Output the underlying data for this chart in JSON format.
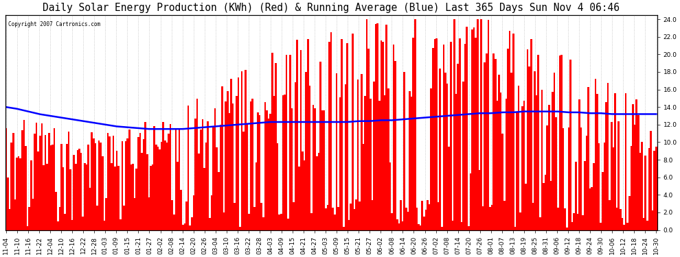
{
  "title": "Daily Solar Energy Production (KWh) (Red) & Running Average (Blue) Last 365 Days Sun Nov 4 06:46",
  "copyright_text": "Copyright 2007 Cartronics.com",
  "yticks": [
    0.0,
    2.0,
    4.0,
    6.0,
    8.0,
    10.0,
    12.0,
    14.0,
    16.0,
    18.0,
    20.0,
    22.0,
    24.0
  ],
  "ylim": [
    0,
    24.5
  ],
  "bar_color": "#FF0000",
  "line_color": "#0000FF",
  "background_color": "#FFFFFF",
  "grid_color": "#BBBBBB",
  "title_fontsize": 10.5,
  "tick_fontsize": 6.5,
  "x_labels": [
    "11-04",
    "11-10",
    "11-16",
    "11-22",
    "12-04",
    "12-10",
    "12-16",
    "12-22",
    "12-28",
    "01-03",
    "01-09",
    "01-15",
    "01-21",
    "01-27",
    "02-02",
    "02-08",
    "02-14",
    "02-20",
    "02-26",
    "03-04",
    "03-10",
    "03-16",
    "03-22",
    "03-28",
    "04-03",
    "04-09",
    "04-15",
    "04-21",
    "04-27",
    "05-03",
    "05-09",
    "05-15",
    "05-21",
    "05-27",
    "06-02",
    "06-08",
    "06-14",
    "06-20",
    "06-26",
    "07-02",
    "07-08",
    "07-14",
    "07-20",
    "07-26",
    "08-01",
    "08-07",
    "08-13",
    "08-19",
    "08-25",
    "08-31",
    "09-06",
    "09-12",
    "09-18",
    "09-24",
    "09-30",
    "10-06",
    "10-12",
    "10-18",
    "10-24",
    "10-30"
  ],
  "avg_line": [
    14.0,
    13.8,
    13.5,
    13.2,
    13.0,
    12.8,
    12.6,
    12.4,
    12.2,
    12.0,
    11.8,
    11.7,
    11.6,
    11.5,
    11.5,
    11.5,
    11.5,
    11.6,
    11.7,
    11.8,
    11.9,
    12.0,
    12.1,
    12.2,
    12.3,
    12.3,
    12.3,
    12.3,
    12.3,
    12.3,
    12.3,
    12.3,
    12.4,
    12.4,
    12.5,
    12.5,
    12.6,
    12.7,
    12.8,
    12.9,
    13.0,
    13.1,
    13.2,
    13.3,
    13.3,
    13.4,
    13.4,
    13.5,
    13.5,
    13.5,
    13.5,
    13.4,
    13.4,
    13.3,
    13.3,
    13.2,
    13.2,
    13.2,
    13.2,
    13.2
  ]
}
